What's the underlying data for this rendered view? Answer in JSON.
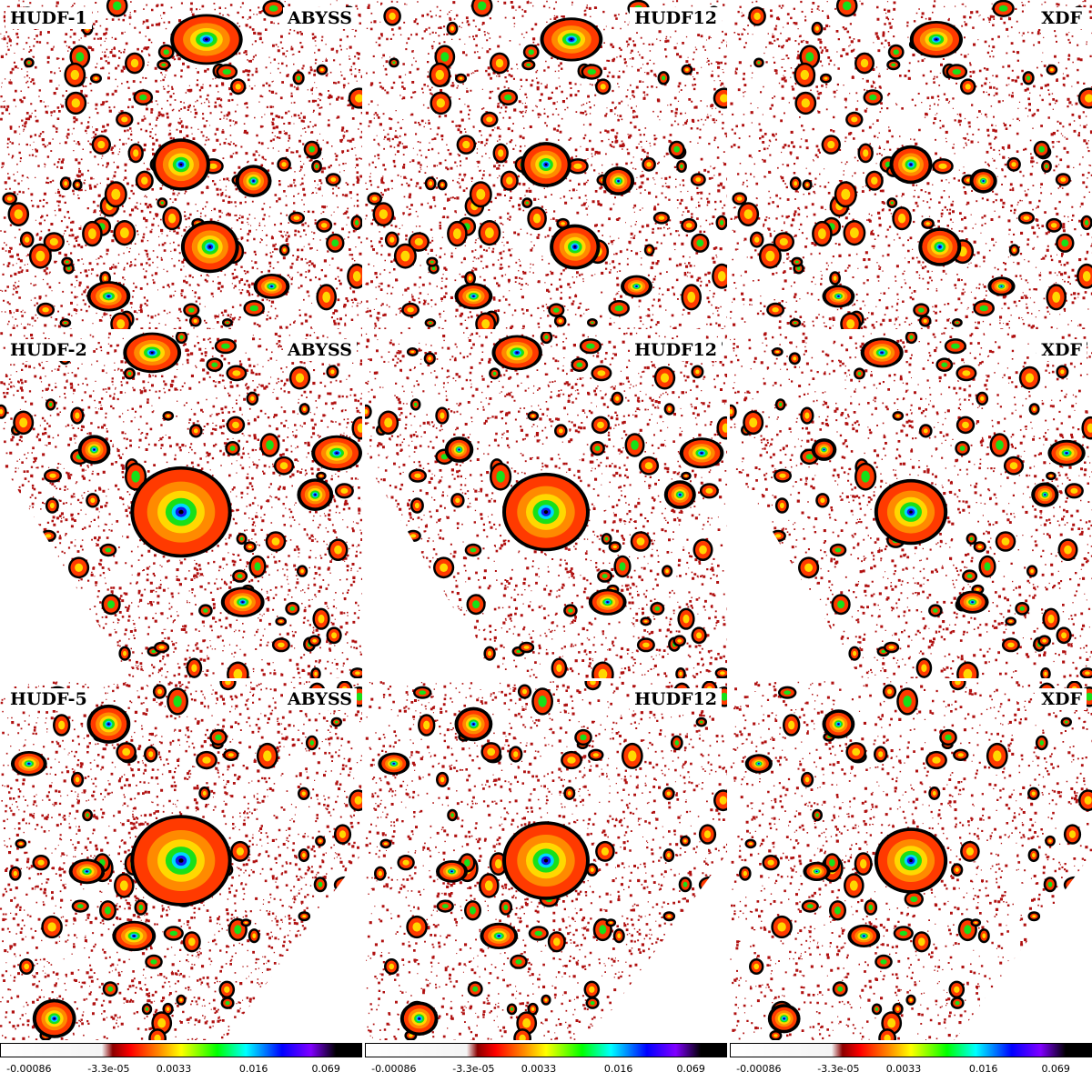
{
  "rows": [
    {
      "field": "HUDF-1",
      "panels": [
        {
          "survey": "ABYSS",
          "field_label": "HUDF-1"
        },
        {
          "survey": "HUDF12",
          "field_label": ""
        },
        {
          "survey": "XDF",
          "field_label": ""
        }
      ]
    },
    {
      "field": "HUDF-2",
      "panels": [
        {
          "survey": "ABYSS",
          "field_label": "HUDF-2"
        },
        {
          "survey": "HUDF12",
          "field_label": ""
        },
        {
          "survey": "XDF",
          "field_label": ""
        }
      ]
    },
    {
      "field": "HUDF-5",
      "panels": [
        {
          "survey": "ABYSS",
          "field_label": "HUDF-5"
        },
        {
          "survey": "HUDF12",
          "field_label": ""
        },
        {
          "survey": "XDF",
          "field_label": ""
        }
      ]
    }
  ],
  "colorbar": {
    "ticks": [
      "-0.00086",
      "-3.3e-05",
      "0.0033",
      "0.016",
      "0.069"
    ],
    "colors": [
      "#ffffff",
      "#f4f4f4",
      "#8b0000",
      "#ff0000",
      "#ff8c00",
      "#ffff00",
      "#00ff00",
      "#00ffff",
      "#0000ff",
      "#8000ff",
      "#000000"
    ]
  },
  "palette": {
    "background_noise": "#b01010",
    "galaxy_outer": "#ff3a00",
    "galaxy_mid": "#ffd800",
    "galaxy_inner": "#18e018",
    "galaxy_core": "#1018e8",
    "contour": "#000000"
  }
}
